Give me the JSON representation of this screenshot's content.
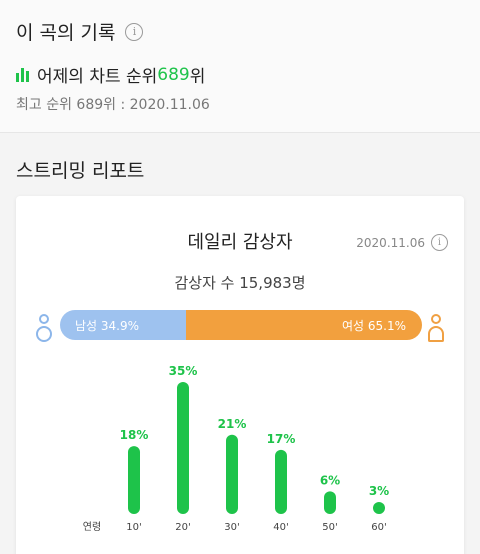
{
  "record": {
    "title": "이 곡의 기록",
    "chart_prefix": "어제의 차트 순위 ",
    "chart_rank": "689",
    "chart_suffix": "위",
    "best": "최고 순위 689위 : 2020.11.06"
  },
  "streaming": {
    "section_title": "스트리밍 리포트",
    "card_title": "데일리 감상자",
    "date": "2020.11.06",
    "listeners": "감상자 수 15,983명",
    "male_label": "남성 34.9%",
    "female_label": "여성 65.1%",
    "male_share": 34.9,
    "female_share": 65.1
  },
  "colors": {
    "accent_green": "#1ec34a",
    "male_blue": "#9ec2ef",
    "female_orange": "#f2a03e"
  },
  "icons": {
    "info": "info-icon",
    "chart": "bar-chart-icon",
    "male": "male-person-icon",
    "female": "female-person-icon"
  },
  "chart_data": {
    "type": "bar",
    "xlabel": "연령",
    "categories": [
      "10'",
      "20'",
      "30'",
      "40'",
      "50'",
      "60'"
    ],
    "values": [
      18,
      35,
      21,
      17,
      6,
      3
    ],
    "labels": [
      "18%",
      "35%",
      "21%",
      "17%",
      "6%",
      "3%"
    ],
    "ylim": [
      0,
      35
    ],
    "grid": false
  }
}
